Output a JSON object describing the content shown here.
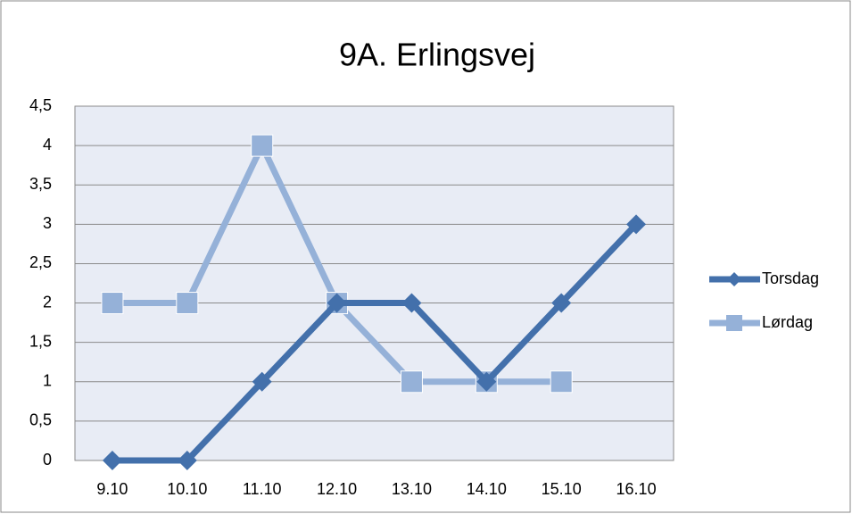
{
  "chart_data": {
    "type": "line",
    "title": "9A. Erlingsvej",
    "categories": [
      "9.10",
      "10.10",
      "11.10",
      "12.10",
      "13.10",
      "14.10",
      "15.10",
      "16.10"
    ],
    "series": [
      {
        "name": "Torsdag",
        "color": "#4370ab",
        "marker": "diamond",
        "values": [
          0,
          0,
          1,
          2,
          2,
          1,
          2,
          3
        ]
      },
      {
        "name": "Lørdag",
        "color": "#95b1d8",
        "marker": "square",
        "values": [
          2,
          2,
          4,
          2,
          1,
          1,
          1,
          null
        ]
      }
    ],
    "ylim": [
      0,
      4.5
    ],
    "yticks": [
      0,
      {
        "value": 0.5,
        "label": "0,5"
      },
      1,
      {
        "value": 1.5,
        "label": "1,5"
      },
      2,
      {
        "value": 2.5,
        "label": "2,5"
      },
      3,
      {
        "value": 3.5,
        "label": "3,5"
      },
      4,
      {
        "value": 4.5,
        "label": "4,5"
      }
    ],
    "grid": true,
    "legend": "right"
  }
}
